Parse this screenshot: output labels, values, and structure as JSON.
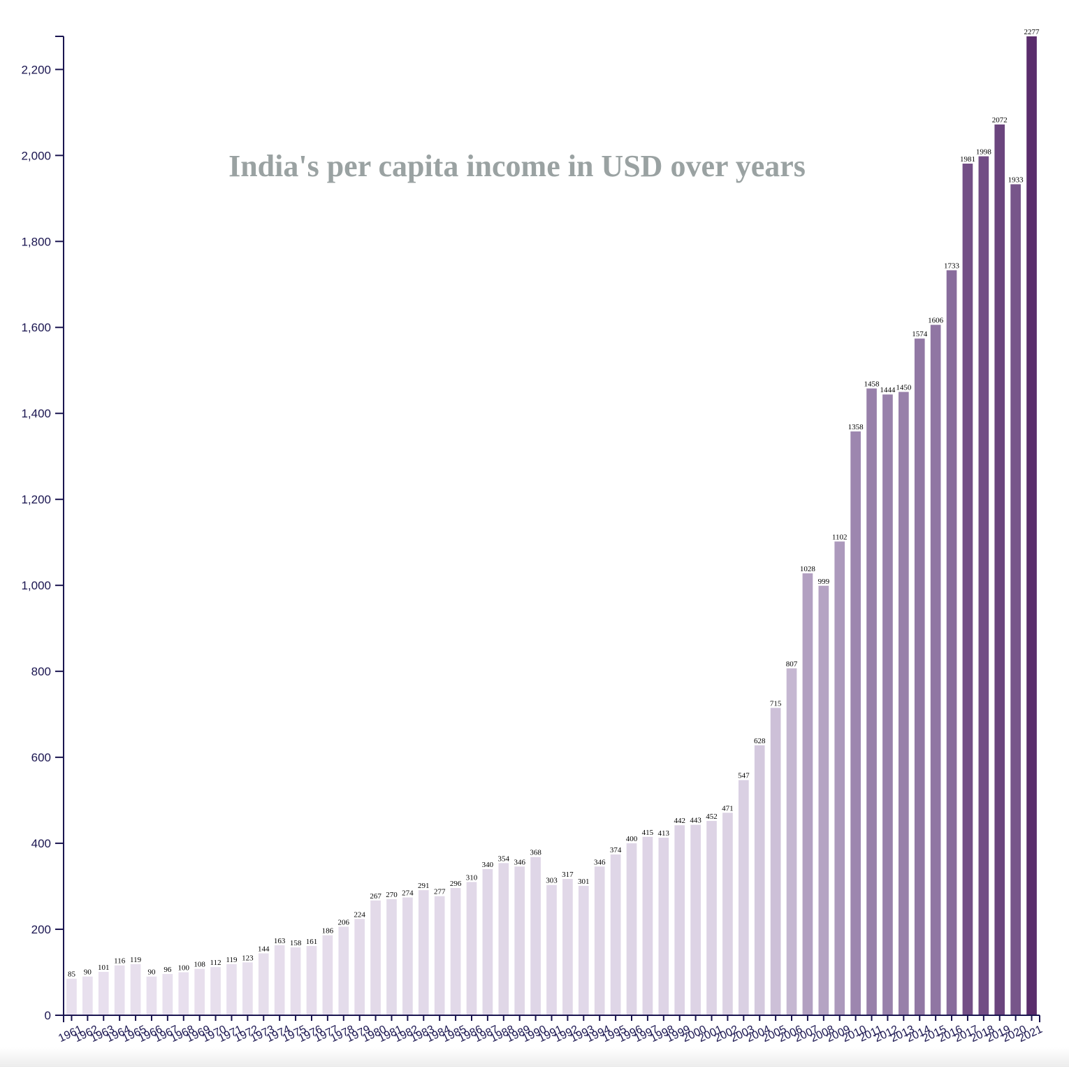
{
  "chart_data": {
    "type": "bar",
    "title": "India's per capita income in USD over years",
    "xlabel": "",
    "ylabel": "",
    "ylim": [
      0,
      2277
    ],
    "yticks": [
      0,
      200,
      400,
      600,
      800,
      1000,
      1200,
      1400,
      1600,
      1800,
      2000,
      2200
    ],
    "ytick_labels": [
      "0",
      "200",
      "400",
      "600",
      "800",
      "1,000",
      "1,200",
      "1,400",
      "1,600",
      "1,800",
      "2,000",
      "2,200"
    ],
    "grid": false,
    "color_scale": [
      "#ebe3f0",
      "#d9cfe2",
      "#a995b9",
      "#8a6f9e",
      "#5a2d6c"
    ],
    "categories": [
      "1961",
      "1962",
      "1963",
      "1964",
      "1965",
      "1966",
      "1967",
      "1968",
      "1969",
      "1970",
      "1971",
      "1972",
      "1973",
      "1974",
      "1975",
      "1976",
      "1977",
      "1978",
      "1979",
      "1980",
      "1981",
      "1982",
      "1983",
      "1984",
      "1985",
      "1986",
      "1987",
      "1988",
      "1989",
      "1990",
      "1991",
      "1992",
      "1993",
      "1994",
      "1995",
      "1996",
      "1997",
      "1998",
      "1999",
      "2000",
      "2001",
      "2002",
      "2003",
      "2004",
      "2005",
      "2006",
      "2007",
      "2008",
      "2009",
      "2010",
      "2011",
      "2012",
      "2013",
      "2014",
      "2015",
      "2016",
      "2017",
      "2018",
      "2019",
      "2020",
      "2021"
    ],
    "values": [
      85,
      90,
      101,
      116,
      119,
      90,
      96,
      100,
      108,
      112,
      119,
      123,
      144,
      163,
      158,
      161,
      186,
      206,
      224,
      267,
      270,
      274,
      291,
      277,
      296,
      310,
      340,
      354,
      346,
      368,
      303,
      317,
      301,
      346,
      374,
      400,
      415,
      413,
      442,
      443,
      452,
      471,
      547,
      628,
      715,
      807,
      1028,
      999,
      1102,
      1358,
      1458,
      1444,
      1450,
      1574,
      1606,
      1733,
      1981,
      1998,
      2072,
      1933,
      2277
    ]
  }
}
